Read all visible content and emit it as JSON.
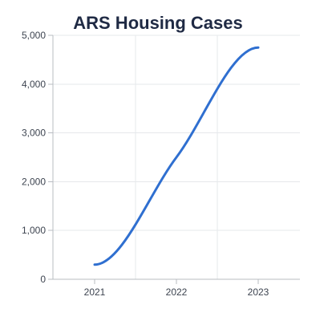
{
  "chart_data": {
    "type": "line",
    "title": "ARS Housing Cases",
    "xlabel": "",
    "ylabel": "",
    "x": [
      2021,
      2022,
      2023
    ],
    "series": [
      {
        "values": [
          300,
          2500,
          4750
        ],
        "color": "#2f6fd0"
      }
    ],
    "xticks": [
      "2021",
      "2022",
      "2023"
    ],
    "yticks": [
      "0",
      "1,000",
      "2,000",
      "3,000",
      "4,000",
      "5,000"
    ],
    "ylim": [
      0,
      5000
    ],
    "xlim": [
      2020.5,
      2023.5
    ],
    "grid": true,
    "legend": "none",
    "curve": "smooth"
  }
}
